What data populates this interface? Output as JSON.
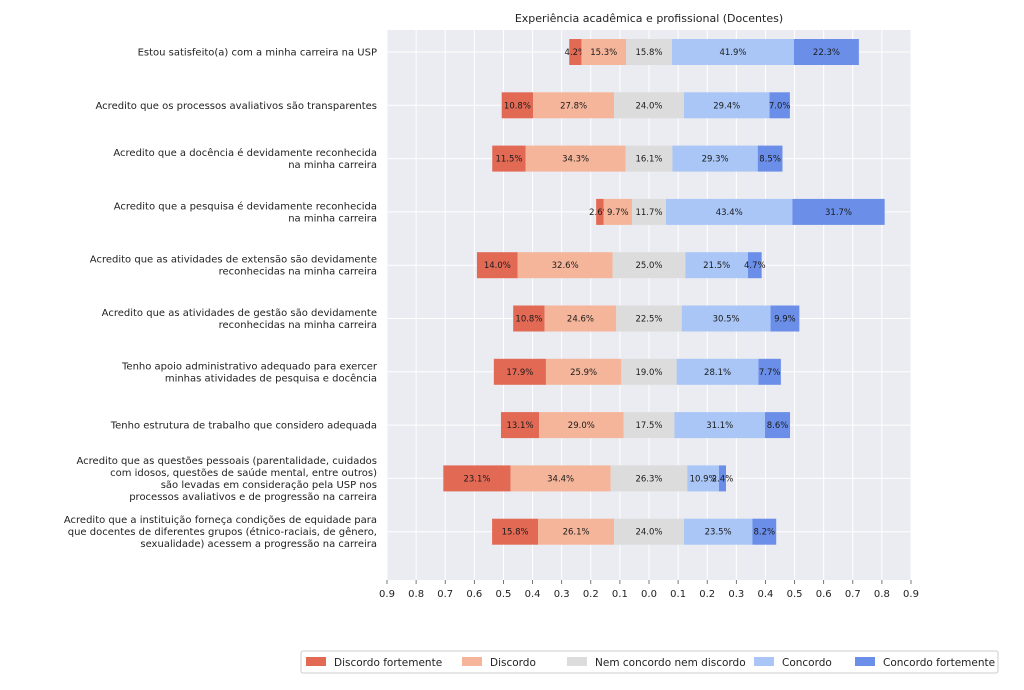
{
  "chart_data": {
    "type": "bar",
    "orientation": "horizontal-diverging-stacked",
    "title": "Experiência acadêmica e profissional (Docentes)",
    "xlim": [
      -0.9,
      0.9
    ],
    "x_ticks": [
      -0.9,
      -0.8,
      -0.7,
      -0.6,
      -0.5,
      -0.4,
      -0.3,
      -0.2,
      -0.1,
      0.0,
      0.1,
      0.2,
      0.3,
      0.4,
      0.5,
      0.6,
      0.7,
      0.8,
      0.9
    ],
    "x_tick_labels": [
      "0.9",
      "0.8",
      "0.7",
      "0.6",
      "0.5",
      "0.4",
      "0.3",
      "0.2",
      "0.1",
      "0.0",
      "0.1",
      "0.2",
      "0.3",
      "0.4",
      "0.5",
      "0.6",
      "0.7",
      "0.8",
      "0.9"
    ],
    "grid": true,
    "legend_position": "bottom-right",
    "series_names": [
      "Discordo fortemente",
      "Discordo",
      "Nem concordo nem discordo",
      "Concordo",
      "Concordo fortemente"
    ],
    "colors": [
      "#e26a55",
      "#f5b59a",
      "#dcdcdc",
      "#a9c6f6",
      "#6b8fe9"
    ],
    "categories": [
      {
        "label": [
          "Estou satisfeito(a) com a minha carreira na USP"
        ],
        "values": [
          4.2,
          15.3,
          15.8,
          41.9,
          22.3
        ]
      },
      {
        "label": [
          "Acredito que os processos avaliativos são transparentes"
        ],
        "values": [
          10.8,
          27.8,
          24.0,
          29.4,
          7.0
        ]
      },
      {
        "label": [
          "Acredito que a docência é devidamente reconhecida",
          "na minha carreira"
        ],
        "values": [
          11.5,
          34.3,
          16.1,
          29.3,
          8.5
        ]
      },
      {
        "label": [
          "Acredito que a pesquisa é devidamente reconhecida",
          "na minha carreira"
        ],
        "values": [
          2.6,
          9.7,
          11.7,
          43.4,
          31.7
        ]
      },
      {
        "label": [
          "Acredito que as atividades de extensão são devidamente",
          "reconhecidas na minha carreira"
        ],
        "values": [
          14.0,
          32.6,
          25.0,
          21.5,
          4.7
        ]
      },
      {
        "label": [
          "Acredito que as atividades de gestão são devidamente",
          "reconhecidas na minha carreira"
        ],
        "values": [
          10.8,
          24.6,
          22.5,
          30.5,
          9.9
        ]
      },
      {
        "label": [
          "Tenho apoio administrativo adequado para exercer",
          "minhas atividades de pesquisa e docência"
        ],
        "values": [
          17.9,
          25.9,
          19.0,
          28.1,
          7.7
        ]
      },
      {
        "label": [
          "Tenho estrutura de trabalho que considero adequada"
        ],
        "values": [
          13.1,
          29.0,
          17.5,
          31.1,
          8.6
        ]
      },
      {
        "label": [
          "Acredito que as questões pessoais (parentalidade, cuidados",
          "com idosos, questões de saúde mental, entre outros)",
          "são levadas em consideração pela USP nos",
          "processos avaliativos e de progressão na carreira"
        ],
        "values": [
          23.1,
          34.4,
          26.3,
          10.9,
          2.4
        ]
      },
      {
        "label": [
          "Acredito que a instituição forneça condições de equidade para",
          "que docentes de diferentes grupos (étnico-raciais, de gênero,",
          "sexualidade) acessem a progressão na carreira"
        ],
        "values": [
          15.8,
          26.1,
          24.0,
          23.5,
          8.2
        ]
      }
    ]
  }
}
